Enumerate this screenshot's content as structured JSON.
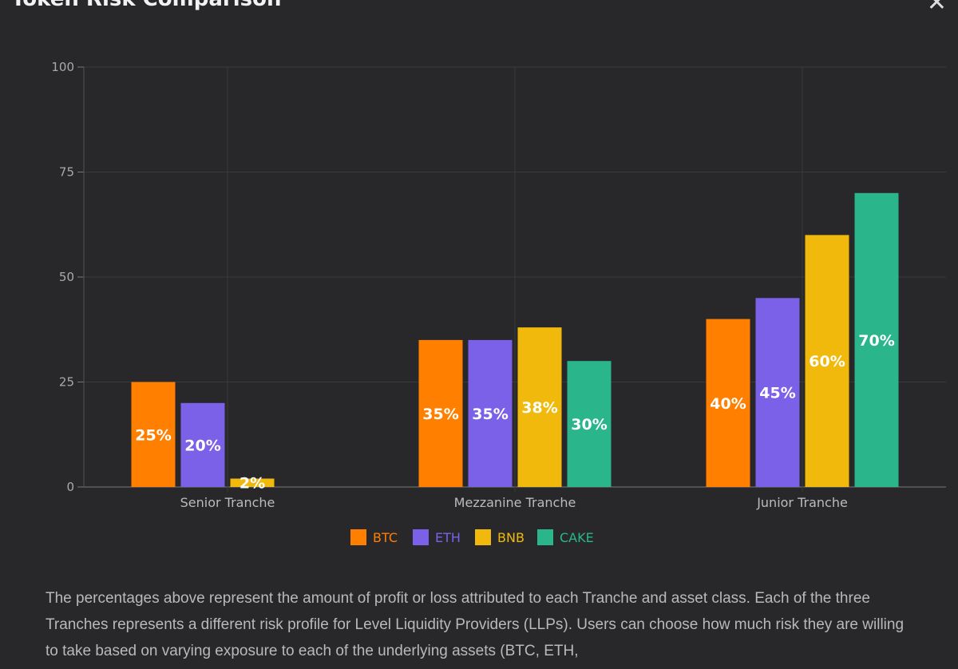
{
  "title": "Token Risk Comparison",
  "close_icon": "close-x-icon",
  "description": "The percentages above represent the amount of profit or loss attributed to each Tranche and asset class. Each of the three Tranches represents a different risk profile for Level Liquidity Providers (LLPs). Users can choose how much risk they are willing to take based on varying exposure to each of the underlying assets (BTC, ETH,",
  "chart_data": {
    "type": "bar",
    "title": "Token Risk Comparison",
    "categories": [
      "Senior Tranche",
      "Mezzanine Tranche",
      "Junior Tranche"
    ],
    "series": [
      {
        "name": "BTC",
        "color": "#ff8000",
        "values": [
          25,
          35,
          40
        ]
      },
      {
        "name": "ETH",
        "color": "#7b61e8",
        "values": [
          20,
          35,
          45
        ]
      },
      {
        "name": "BNB",
        "color": "#f0b90b",
        "values": [
          2,
          38,
          60
        ]
      },
      {
        "name": "CAKE",
        "color": "#2ab58a",
        "values": [
          null,
          30,
          70
        ]
      }
    ],
    "value_suffix": "%",
    "ylim": [
      0,
      100
    ],
    "yticks": [
      0,
      25,
      50,
      75,
      100
    ],
    "grid": true,
    "legend": "bottom",
    "xlabel": "",
    "ylabel": ""
  }
}
